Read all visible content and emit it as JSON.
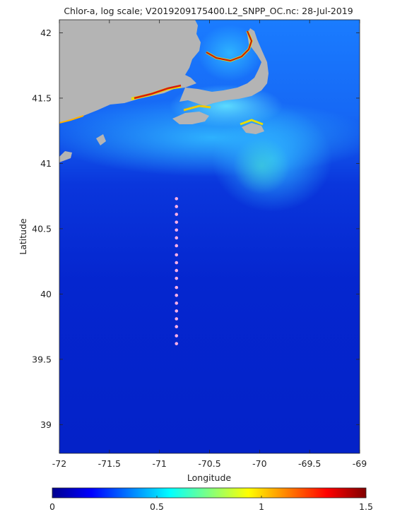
{
  "title": "Chlor-a, log scale; V2019209175400.L2_SNPP_OC.nc: 28-Jul-2019",
  "chart_data": {
    "type": "map",
    "title": "Chlor-a, log scale; V2019209175400.L2_SNPP_OC.nc: 28-Jul-2019",
    "xlabel": "Longitude",
    "ylabel": "Latitude",
    "xlim": [
      -72,
      -69
    ],
    "ylim": [
      38.78,
      42.1
    ],
    "xticks": [
      -72,
      -71.5,
      -71,
      -70.5,
      -70,
      -69.5,
      -69
    ],
    "xtick_labels": [
      "-72",
      "-71.5",
      "-71",
      "-70.5",
      "-70",
      "-69.5",
      "-69"
    ],
    "yticks": [
      39,
      39.5,
      40,
      40.5,
      41,
      41.5,
      42
    ],
    "ytick_labels": [
      "39",
      "39.5",
      "40",
      "40.5",
      "41",
      "41.5",
      "42"
    ],
    "colorbar": {
      "range": [
        0,
        1.5
      ],
      "ticks": [
        0,
        0.5,
        1,
        1.5
      ],
      "tick_labels": [
        "0",
        "0.5",
        "1",
        "1.5"
      ],
      "colormap": "jet"
    },
    "land_color": "#b4b4b4",
    "station_color": "#ffb0e6",
    "stations": [
      {
        "lon": -70.83,
        "lat": 40.73
      },
      {
        "lon": -70.83,
        "lat": 40.67
      },
      {
        "lon": -70.83,
        "lat": 40.61
      },
      {
        "lon": -70.83,
        "lat": 40.55
      },
      {
        "lon": -70.83,
        "lat": 40.49
      },
      {
        "lon": -70.83,
        "lat": 40.43
      },
      {
        "lon": -70.83,
        "lat": 40.37
      },
      {
        "lon": -70.83,
        "lat": 40.3
      },
      {
        "lon": -70.83,
        "lat": 40.24
      },
      {
        "lon": -70.83,
        "lat": 40.18
      },
      {
        "lon": -70.83,
        "lat": 40.12
      },
      {
        "lon": -70.83,
        "lat": 40.05
      },
      {
        "lon": -70.83,
        "lat": 39.99
      },
      {
        "lon": -70.83,
        "lat": 39.93
      },
      {
        "lon": -70.83,
        "lat": 39.87
      },
      {
        "lon": -70.83,
        "lat": 39.81
      },
      {
        "lon": -70.83,
        "lat": 39.75
      },
      {
        "lon": -70.83,
        "lat": 39.68
      },
      {
        "lon": -70.83,
        "lat": 39.62
      }
    ]
  }
}
